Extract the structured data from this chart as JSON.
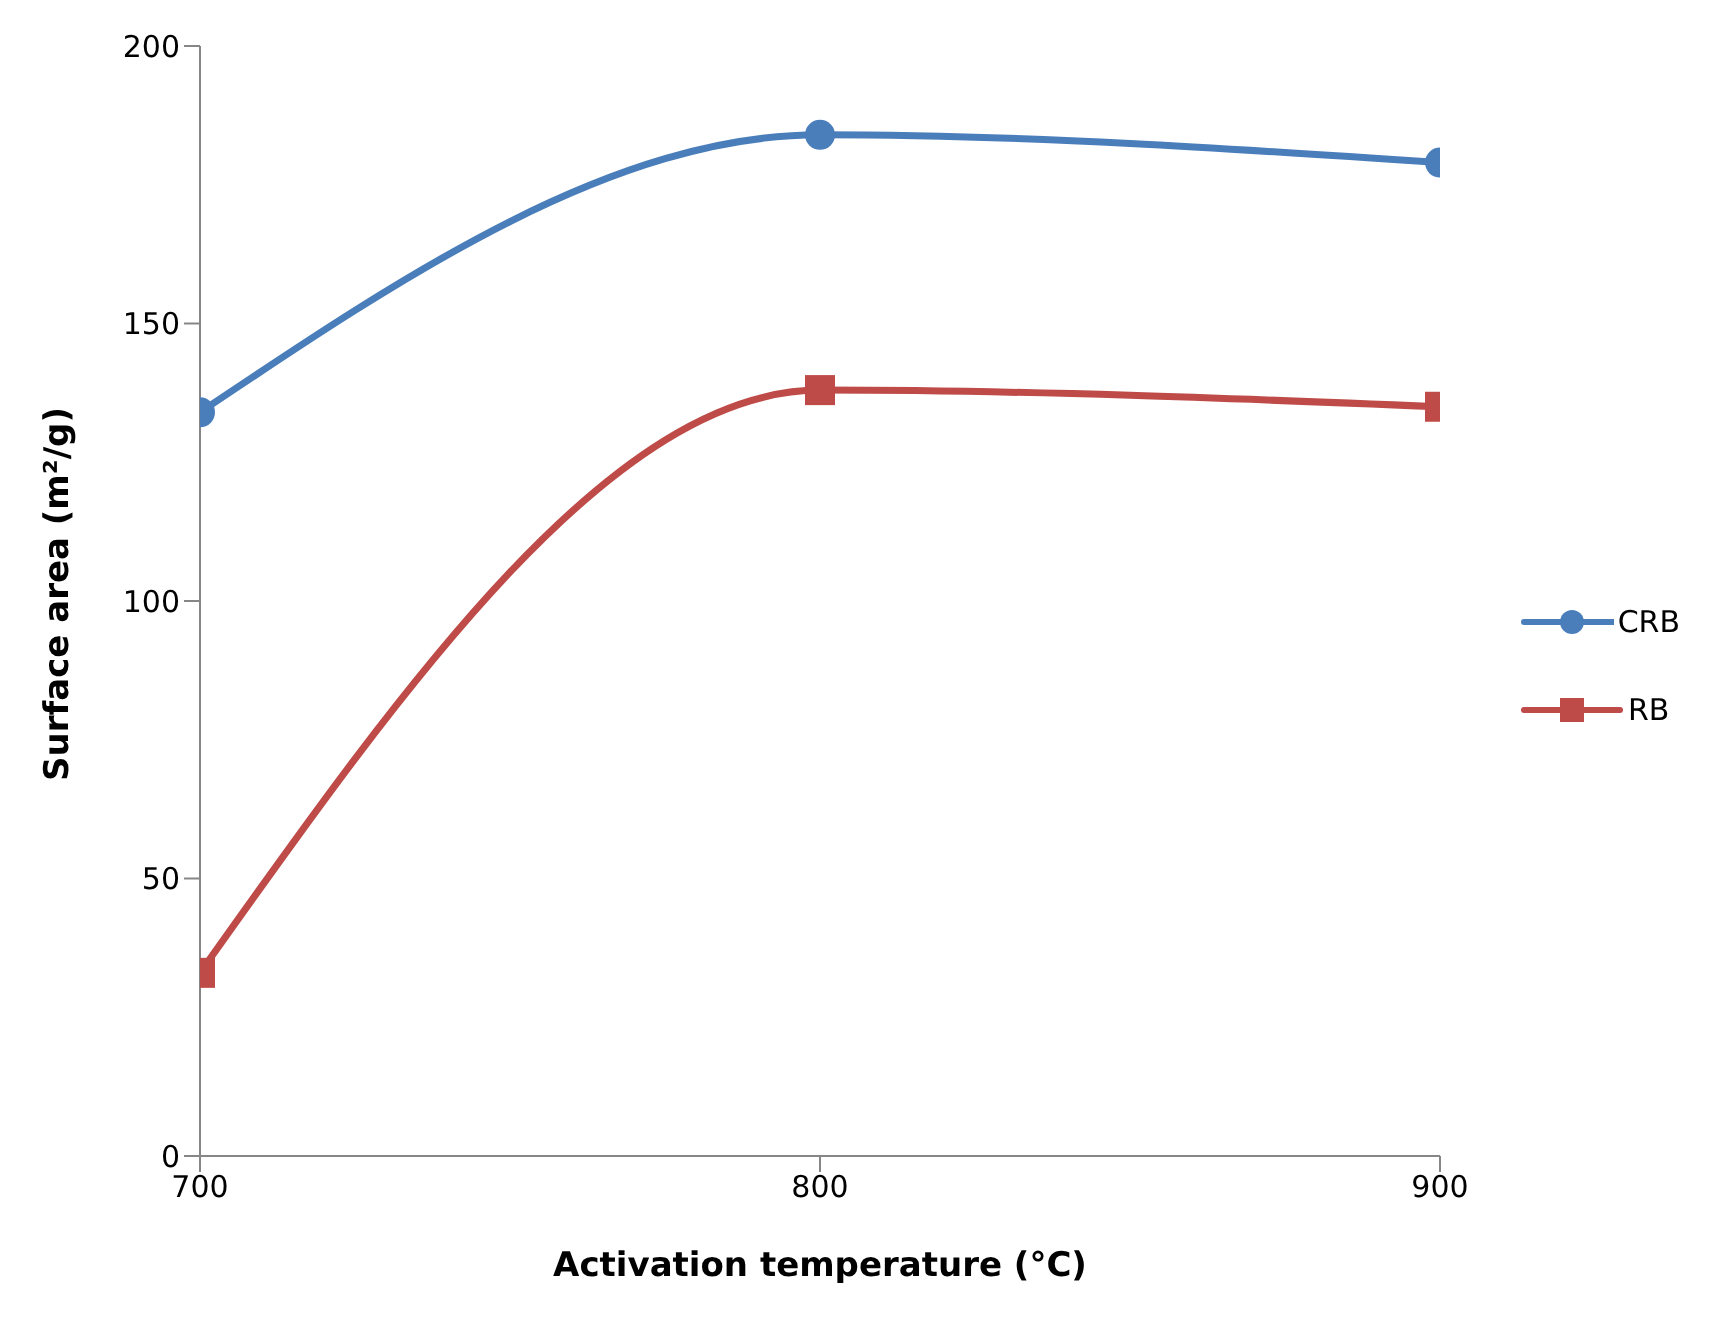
{
  "chart_data": {
    "type": "line",
    "xlabel": "Activation temperature (°C)",
    "ylabel": "Surface area (m²/g)",
    "x": [
      700,
      800,
      900
    ],
    "series": [
      {
        "name": "CRB",
        "color": "#4a7ebb",
        "marker": "circle",
        "values": [
          134,
          184,
          179
        ]
      },
      {
        "name": "RB",
        "color": "#be4b48",
        "marker": "square",
        "values": [
          33,
          138,
          135
        ]
      }
    ],
    "xlim": [
      700,
      900
    ],
    "xticks": [
      700,
      800,
      900
    ],
    "ylim": [
      0,
      200
    ],
    "yticks": [
      0,
      50,
      100,
      150,
      200
    ],
    "grid": false,
    "legend": "right",
    "line_style": "solid"
  }
}
